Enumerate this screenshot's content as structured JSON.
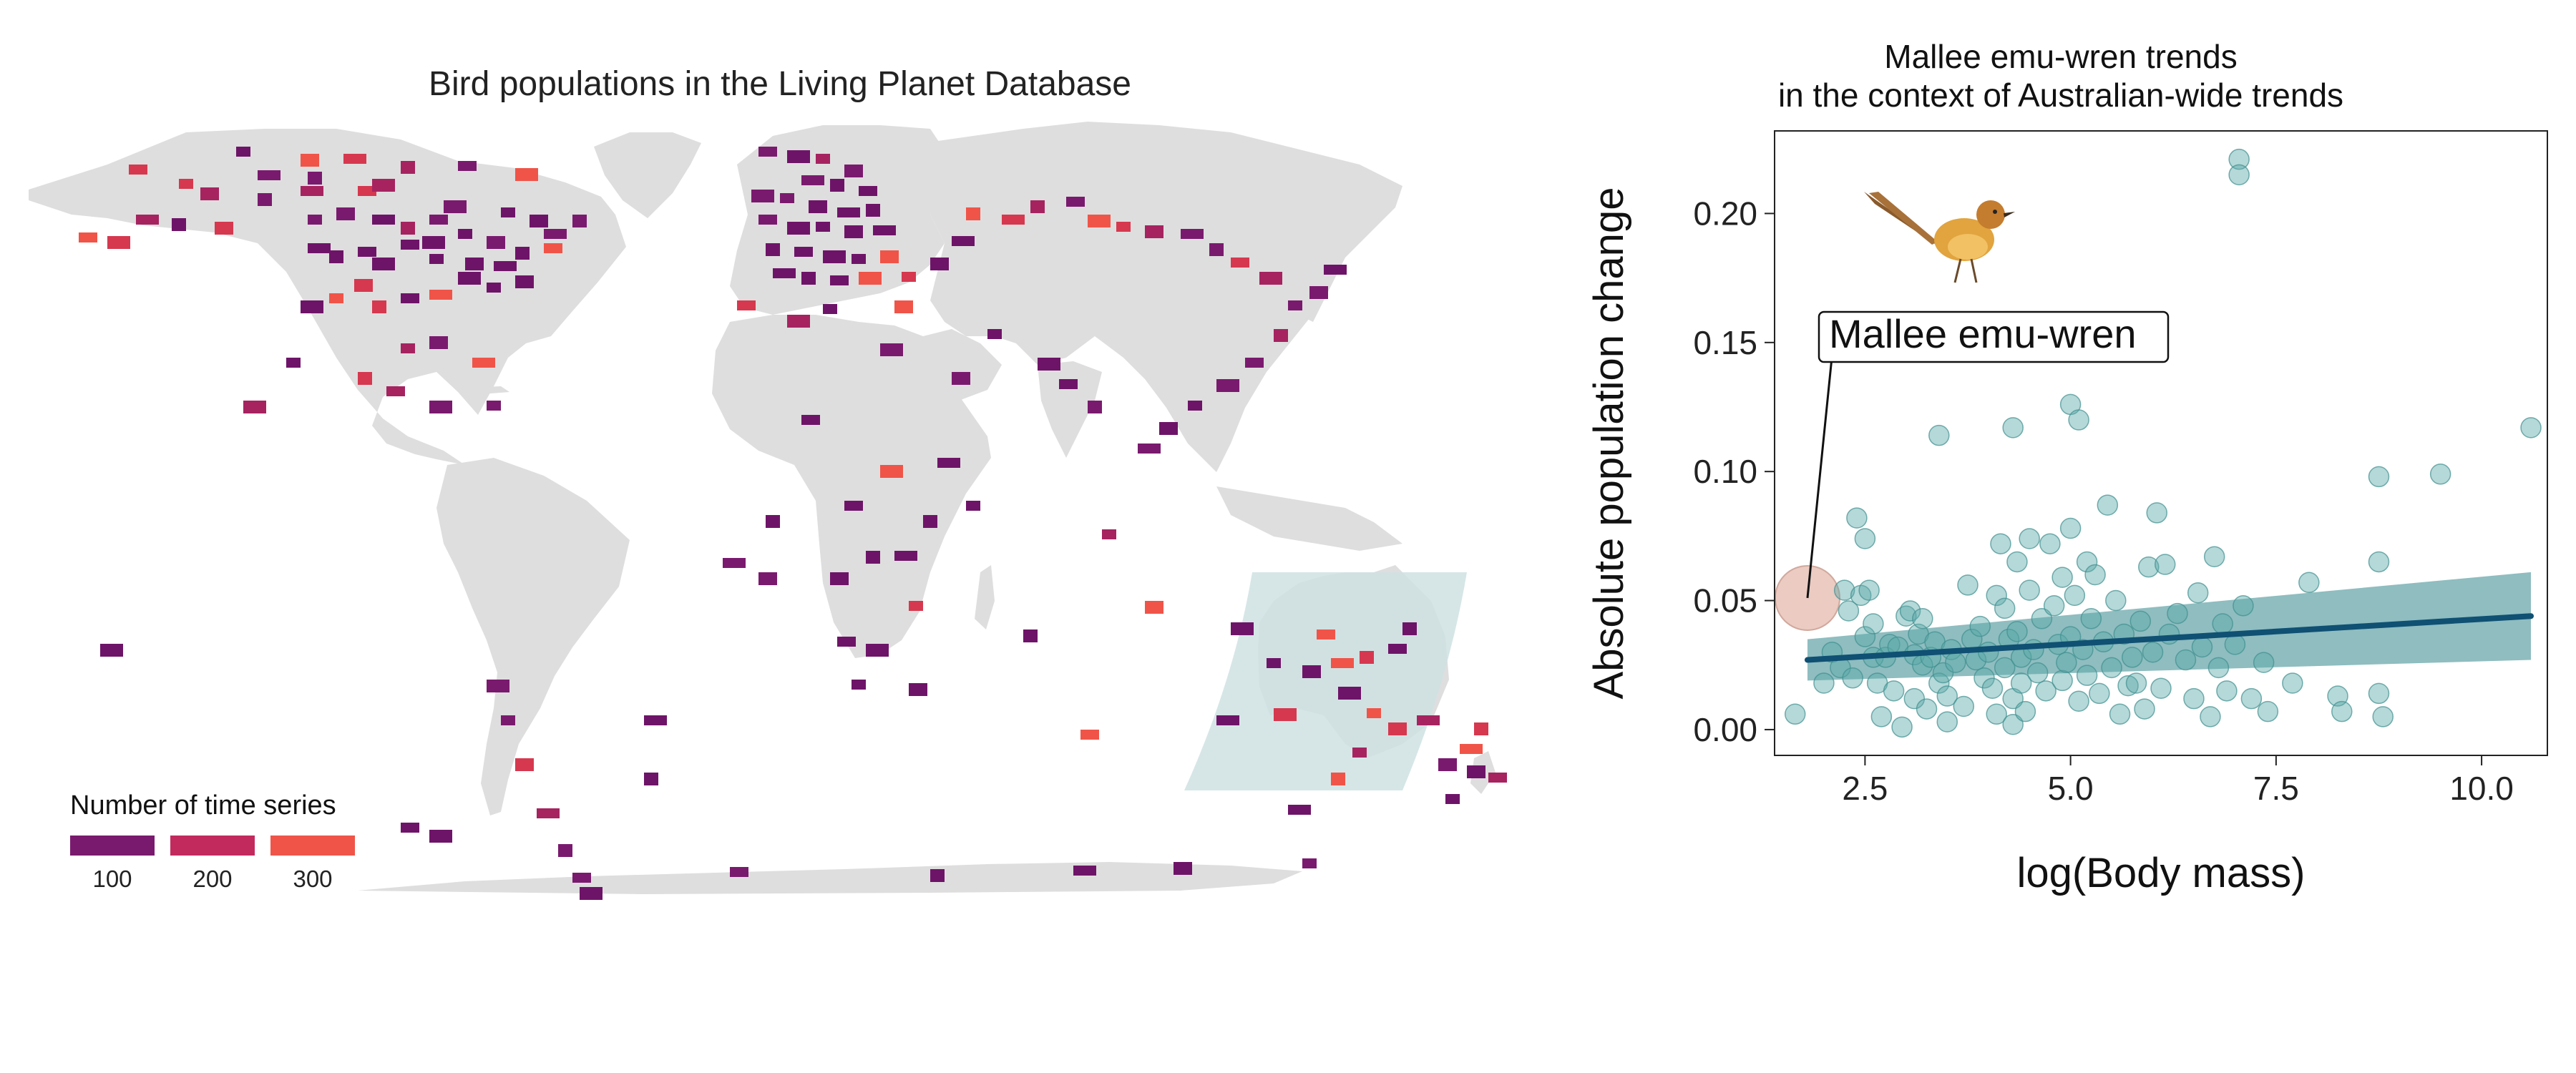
{
  "map": {
    "title": "Bird populations in the Living Planet Database",
    "land_color": "#dedede",
    "cell_color_low": "#6e1468",
    "cell_color_high": "#f25c4e",
    "highlight_color": "#cfe2e3",
    "legend": {
      "title": "Number of time series",
      "items": [
        {
          "label": "100",
          "color": "#7a1a6e"
        },
        {
          "label": "200",
          "color": "#c22a5e"
        },
        {
          "label": "300",
          "color": "#f05448"
        }
      ]
    }
  },
  "scatter": {
    "title_line1": "Mallee emu-wren trends",
    "title_line2": "in the context of Australian-wide trends",
    "annotation": "Mallee emu-wren",
    "point_color": "#5aa9a8",
    "line_color": "#0f5073",
    "ribbon_color": "#6aa7ab",
    "highlight_circle_color": "#e8c3b8"
  },
  "chart_data": {
    "type": "scatter",
    "title": "Mallee emu-wren trends in the context of Australian-wide trends",
    "xlabel": "log(Body mass)",
    "ylabel": "Absolute population change",
    "xlim": [
      1.4,
      10.8
    ],
    "ylim": [
      -0.01,
      0.232
    ],
    "xticks": [
      2.5,
      5.0,
      7.5,
      10.0
    ],
    "xtick_labels": [
      "2.5",
      "5.0",
      "7.5",
      "10.0"
    ],
    "yticks": [
      0.0,
      0.05,
      0.1,
      0.15,
      0.2
    ],
    "ytick_labels": [
      "0.00",
      "0.05",
      "0.10",
      "0.15",
      "0.20"
    ],
    "grid": false,
    "highlight": {
      "name": "Mallee emu-wren",
      "x": 1.8,
      "y": 0.051
    },
    "fit": {
      "x": [
        1.8,
        10.6
      ],
      "y": [
        0.027,
        0.044
      ],
      "ci_low": [
        0.019,
        0.027
      ],
      "ci_high": [
        0.035,
        0.061
      ]
    },
    "points": [
      [
        1.65,
        0.006
      ],
      [
        2.0,
        0.018
      ],
      [
        2.1,
        0.03
      ],
      [
        2.2,
        0.024
      ],
      [
        2.25,
        0.054
      ],
      [
        2.3,
        0.046
      ],
      [
        2.35,
        0.02
      ],
      [
        2.4,
        0.082
      ],
      [
        2.45,
        0.052
      ],
      [
        2.5,
        0.074
      ],
      [
        2.5,
        0.036
      ],
      [
        2.55,
        0.054
      ],
      [
        2.6,
        0.041
      ],
      [
        2.6,
        0.028
      ],
      [
        2.65,
        0.018
      ],
      [
        2.7,
        0.005
      ],
      [
        2.75,
        0.028
      ],
      [
        2.8,
        0.033
      ],
      [
        2.85,
        0.015
      ],
      [
        2.9,
        0.032
      ],
      [
        2.95,
        0.001
      ],
      [
        3.0,
        0.044
      ],
      [
        3.05,
        0.046
      ],
      [
        3.1,
        0.012
      ],
      [
        3.1,
        0.029
      ],
      [
        3.15,
        0.037
      ],
      [
        3.2,
        0.043
      ],
      [
        3.2,
        0.025
      ],
      [
        3.25,
        0.008
      ],
      [
        3.3,
        0.028
      ],
      [
        3.35,
        0.034
      ],
      [
        3.4,
        0.114
      ],
      [
        3.4,
        0.018
      ],
      [
        3.45,
        0.022
      ],
      [
        3.5,
        0.013
      ],
      [
        3.5,
        0.003
      ],
      [
        3.55,
        0.031
      ],
      [
        3.6,
        0.026
      ],
      [
        3.7,
        0.009
      ],
      [
        3.75,
        0.056
      ],
      [
        3.8,
        0.035
      ],
      [
        3.85,
        0.027
      ],
      [
        3.9,
        0.04
      ],
      [
        3.95,
        0.02
      ],
      [
        4.0,
        0.03
      ],
      [
        4.05,
        0.016
      ],
      [
        4.1,
        0.052
      ],
      [
        4.1,
        0.006
      ],
      [
        4.15,
        0.072
      ],
      [
        4.2,
        0.047
      ],
      [
        4.2,
        0.024
      ],
      [
        4.25,
        0.035
      ],
      [
        4.3,
        0.117
      ],
      [
        4.3,
        0.012
      ],
      [
        4.3,
        0.002
      ],
      [
        4.35,
        0.065
      ],
      [
        4.35,
        0.038
      ],
      [
        4.4,
        0.028
      ],
      [
        4.4,
        0.018
      ],
      [
        4.45,
        0.007
      ],
      [
        4.5,
        0.074
      ],
      [
        4.5,
        0.054
      ],
      [
        4.55,
        0.031
      ],
      [
        4.6,
        0.022
      ],
      [
        4.65,
        0.043
      ],
      [
        4.7,
        0.015
      ],
      [
        4.75,
        0.072
      ],
      [
        4.8,
        0.048
      ],
      [
        4.85,
        0.033
      ],
      [
        4.9,
        0.059
      ],
      [
        4.9,
        0.019
      ],
      [
        4.95,
        0.026
      ],
      [
        5.0,
        0.126
      ],
      [
        5.0,
        0.078
      ],
      [
        5.0,
        0.036
      ],
      [
        5.05,
        0.052
      ],
      [
        5.1,
        0.12
      ],
      [
        5.1,
        0.011
      ],
      [
        5.15,
        0.031
      ],
      [
        5.2,
        0.065
      ],
      [
        5.2,
        0.021
      ],
      [
        5.25,
        0.043
      ],
      [
        5.3,
        0.06
      ],
      [
        5.35,
        0.014
      ],
      [
        5.4,
        0.034
      ],
      [
        5.45,
        0.087
      ],
      [
        5.5,
        0.024
      ],
      [
        5.55,
        0.05
      ],
      [
        5.6,
        0.006
      ],
      [
        5.65,
        0.037
      ],
      [
        5.7,
        0.017
      ],
      [
        5.75,
        0.028
      ],
      [
        5.8,
        0.018
      ],
      [
        5.85,
        0.042
      ],
      [
        5.9,
        0.008
      ],
      [
        5.95,
        0.063
      ],
      [
        6.0,
        0.03
      ],
      [
        6.05,
        0.084
      ],
      [
        6.1,
        0.016
      ],
      [
        6.15,
        0.064
      ],
      [
        6.2,
        0.037
      ],
      [
        6.3,
        0.045
      ],
      [
        6.4,
        0.027
      ],
      [
        6.5,
        0.012
      ],
      [
        6.55,
        0.053
      ],
      [
        6.6,
        0.032
      ],
      [
        6.7,
        0.005
      ],
      [
        6.75,
        0.067
      ],
      [
        6.8,
        0.024
      ],
      [
        6.85,
        0.041
      ],
      [
        6.9,
        0.015
      ],
      [
        7.0,
        0.033
      ],
      [
        7.05,
        0.221
      ],
      [
        7.05,
        0.215
      ],
      [
        7.1,
        0.048
      ],
      [
        7.2,
        0.012
      ],
      [
        7.35,
        0.026
      ],
      [
        7.4,
        0.007
      ],
      [
        7.7,
        0.018
      ],
      [
        7.9,
        0.057
      ],
      [
        8.25,
        0.013
      ],
      [
        8.3,
        0.007
      ],
      [
        8.75,
        0.098
      ],
      [
        8.75,
        0.065
      ],
      [
        8.75,
        0.014
      ],
      [
        8.8,
        0.005
      ],
      [
        9.5,
        0.099
      ],
      [
        10.6,
        0.117
      ]
    ]
  }
}
